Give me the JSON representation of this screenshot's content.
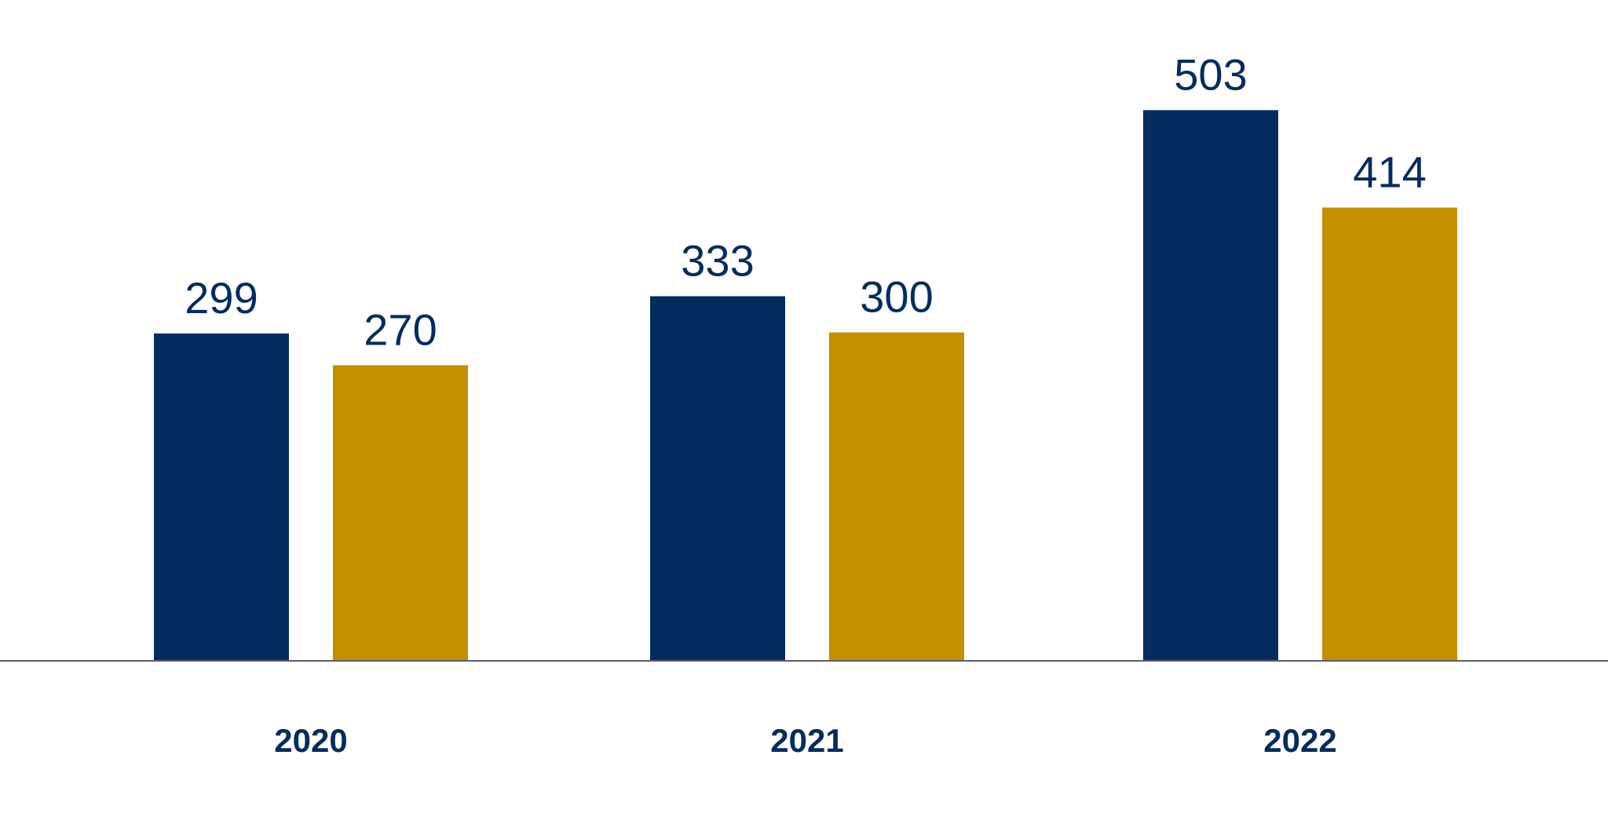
{
  "chart_data": {
    "type": "bar",
    "categories": [
      "2020",
      "2021",
      "2022"
    ],
    "series": [
      {
        "color": "#052c5e",
        "values": [
          299,
          333,
          503
        ]
      },
      {
        "color": "#c48f00",
        "values": [
          270,
          300,
          414
        ]
      }
    ],
    "ylim": [
      0,
      650
    ],
    "grid": false,
    "legend": "none",
    "axis_color": "#5b5b6b",
    "category_label_color": "#052c5e",
    "value_label_color": "#052c5e"
  }
}
